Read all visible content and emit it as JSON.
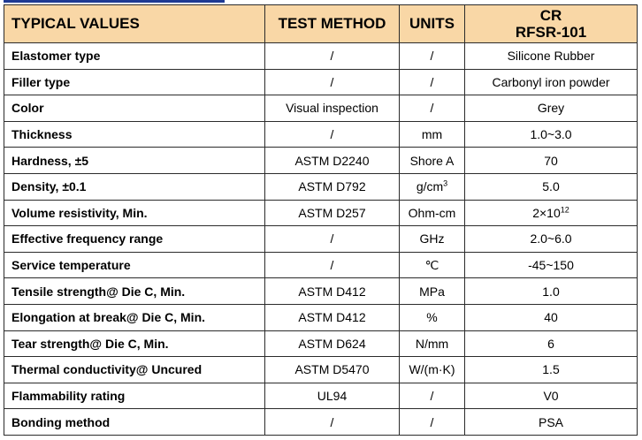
{
  "header": {
    "col1": "TYPICAL VALUES",
    "col2": "TEST METHOD",
    "col3": "UNITS",
    "col4_line1": "CR",
    "col4_line2": "RFSR-101"
  },
  "rows": [
    {
      "property": "Elastomer type",
      "method": "/",
      "unit": "/",
      "value": "Silicone Rubber"
    },
    {
      "property": "Filler type",
      "method": "/",
      "unit": "/",
      "value": "Carbonyl iron powder"
    },
    {
      "property": "Color",
      "method": "Visual inspection",
      "unit": "/",
      "value": "Grey"
    },
    {
      "property": "Thickness",
      "method": "/",
      "unit": "mm",
      "value": "1.0~3.0"
    },
    {
      "property": "Hardness, ±5",
      "method": "ASTM D2240",
      "unit": "Shore A",
      "value": "70"
    },
    {
      "property": "Density, ±0.1",
      "method": "ASTM D792",
      "unit": "g/cm",
      "unit_sup": "3",
      "value": "5.0"
    },
    {
      "property": "Volume resistivity, Min.",
      "method": "ASTM D257",
      "unit": "Ohm-cm",
      "value": "2×10",
      "value_sup": "12"
    },
    {
      "property": "Effective frequency range",
      "method": "/",
      "unit": "GHz",
      "value": "2.0~6.0"
    },
    {
      "property": "Service temperature",
      "method": "/",
      "unit": "℃",
      "value": "-45~150"
    },
    {
      "property": "Tensile strength@ Die C, Min.",
      "method": "ASTM D412",
      "unit": "MPa",
      "value": "1.0"
    },
    {
      "property": "Elongation at break@ Die C, Min.",
      "method": "ASTM D412",
      "unit": "%",
      "value": "40"
    },
    {
      "property": "Tear strength@ Die C, Min.",
      "method": "ASTM D624",
      "unit": "N/mm",
      "value": "6"
    },
    {
      "property": "Thermal conductivity@ Uncured",
      "method": "ASTM D5470",
      "unit": "W/(m·K)",
      "value": "1.5"
    },
    {
      "property": "Flammability rating",
      "method": "UL94",
      "unit": "/",
      "value": "V0"
    },
    {
      "property": "Bonding method",
      "method": "/",
      "unit": "/",
      "value": "PSA"
    }
  ]
}
